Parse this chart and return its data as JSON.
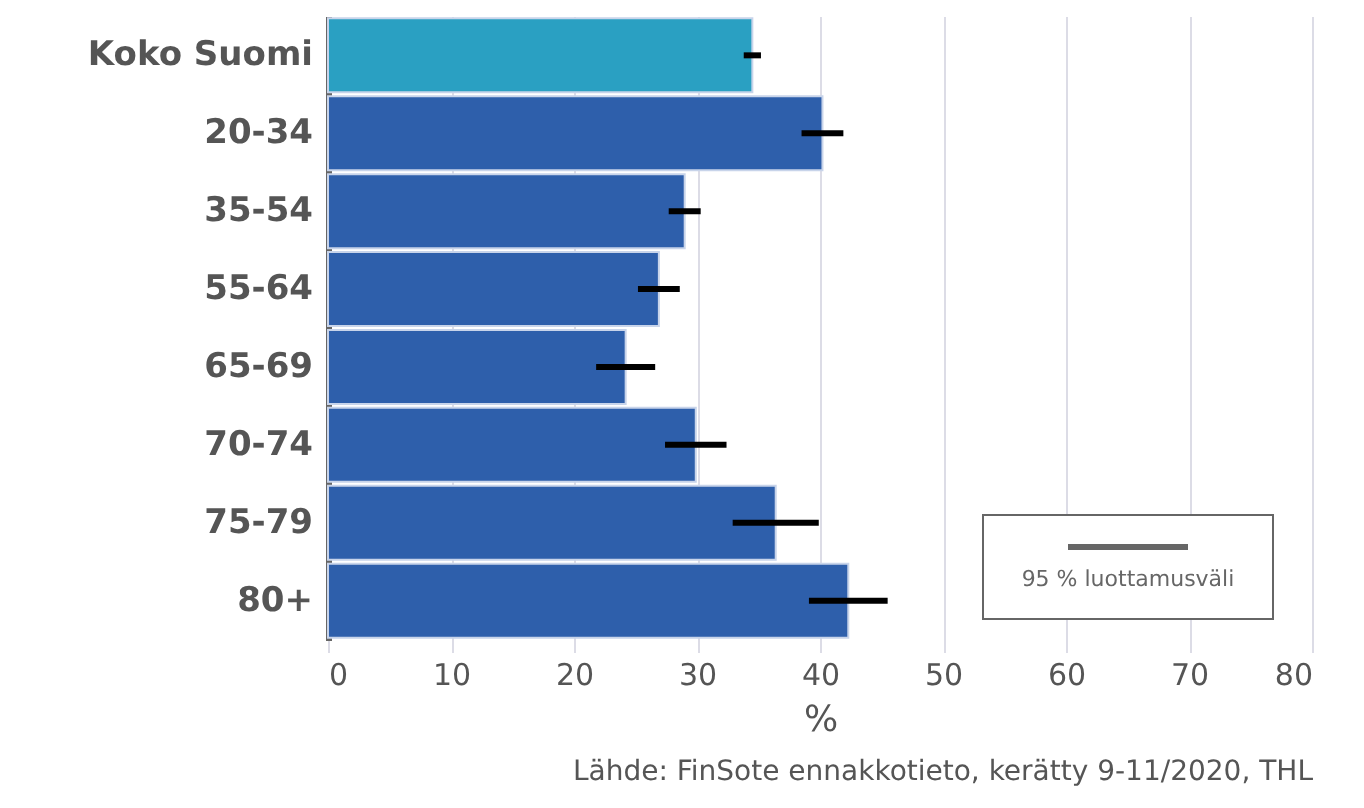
{
  "chart_data": {
    "type": "bar",
    "orientation": "horizontal",
    "categories": [
      "Koko Suomi",
      "20-34",
      "35-54",
      "55-64",
      "65-69",
      "70-74",
      "75-79",
      "80+"
    ],
    "values": [
      34.5,
      40.2,
      29.0,
      26.9,
      24.2,
      29.9,
      36.4,
      42.3
    ],
    "errors": [
      0.7,
      1.7,
      1.3,
      1.7,
      2.4,
      2.5,
      3.5,
      3.2
    ],
    "colors": [
      "#2aa0c2",
      "#2e5fab",
      "#2e5fab",
      "#2e5fab",
      "#2e5fab",
      "#2e5fab",
      "#2e5fab",
      "#2e5fab"
    ],
    "xlabel": "%",
    "xlim": [
      0,
      80
    ],
    "xticks": [
      0,
      10,
      20,
      30,
      40,
      50,
      60,
      70,
      80
    ],
    "grid": "x",
    "annotations": [
      "Lähde: FinSote ennakkotieto, kerätty 9-11/2020, THL",
      "95 % luottamusväli"
    ]
  }
}
